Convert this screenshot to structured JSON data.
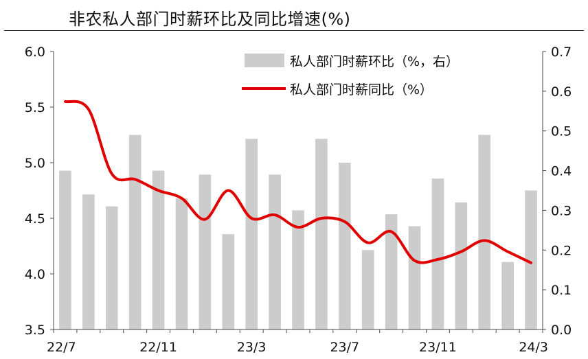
{
  "chart_data": {
    "type": "bar+line",
    "title": "非农私人部门时薪环比及同比增速(%)",
    "categories": [
      "22/7",
      "22/8",
      "22/9",
      "22/10",
      "22/11",
      "22/12",
      "23/1",
      "23/2",
      "23/3",
      "23/4",
      "23/5",
      "23/6",
      "23/7",
      "23/8",
      "23/9",
      "23/10",
      "23/11",
      "23/12",
      "24/1",
      "24/2",
      "24/3"
    ],
    "x_tick_labels": [
      "22/7",
      "22/11",
      "23/3",
      "23/7",
      "23/11",
      "24/3"
    ],
    "series": [
      {
        "name": "私人部门时薪环比（%，右）",
        "type": "bar",
        "axis": "right",
        "color": "#cccccc",
        "values": [
          0.4,
          0.34,
          0.31,
          0.49,
          0.4,
          0.33,
          0.39,
          0.24,
          0.48,
          0.39,
          0.3,
          0.48,
          0.42,
          0.2,
          0.29,
          0.26,
          0.38,
          0.32,
          0.49,
          0.17,
          0.35
        ]
      },
      {
        "name": "私人部门时薪同比（%）",
        "type": "line",
        "axis": "left",
        "color": "#e00000",
        "values": [
          5.55,
          5.48,
          4.9,
          4.85,
          4.75,
          4.68,
          4.49,
          4.75,
          4.5,
          4.53,
          4.42,
          4.5,
          4.47,
          4.28,
          4.38,
          4.12,
          4.13,
          4.2,
          4.3,
          4.2,
          4.1
        ]
      }
    ],
    "y_left": {
      "min": 3.5,
      "max": 6.0,
      "ticks": [
        "3.5",
        "4.0",
        "4.5",
        "5.0",
        "5.5",
        "6.0"
      ]
    },
    "y_right": {
      "min": 0.0,
      "max": 0.7,
      "ticks": [
        "0.0",
        "0.1",
        "0.2",
        "0.3",
        "0.4",
        "0.5",
        "0.6",
        "0.7"
      ]
    },
    "legend_placement": "top-right",
    "grid": false
  }
}
